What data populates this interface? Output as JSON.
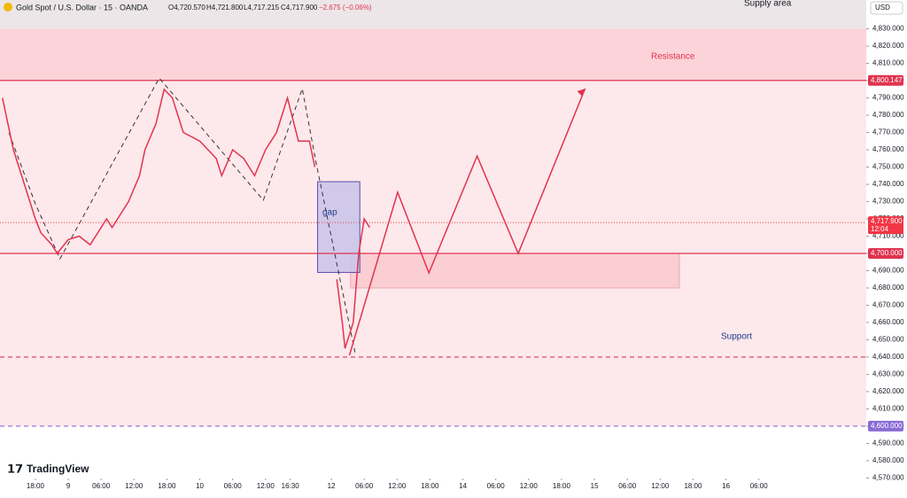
{
  "header": {
    "symbol": "Gold Spot / U.S. Dollar · 15 · OANDA",
    "open": "O4,720.570",
    "high": "H4,721.800",
    "low": "L4,717.215",
    "close": "C4,717.900",
    "change": "−2.675 (−0.06%)"
  },
  "currency": "USD",
  "brand": "TradingView",
  "annotations": {
    "supply": "Supply area",
    "resistance": "Resistance",
    "support": "Support",
    "gap": "gap"
  },
  "chart_data": {
    "type": "line",
    "xlim": [
      -6.45,
      151.6
    ],
    "ylim": [
      4569.7,
      4846.7
    ],
    "yticks": [
      {
        "value": 4570,
        "label": "4,570.000"
      },
      {
        "value": 4580,
        "label": "4,580.000"
      },
      {
        "value": 4590,
        "label": "4,590.000"
      },
      {
        "value": 4600,
        "label": "4,600.000"
      },
      {
        "value": 4610,
        "label": "4,610.000"
      },
      {
        "value": 4620,
        "label": "4,620.000"
      },
      {
        "value": 4630,
        "label": "4,630.000"
      },
      {
        "value": 4640,
        "label": "4,640.000"
      },
      {
        "value": 4650,
        "label": "4,650.000"
      },
      {
        "value": 4660,
        "label": "4,660.000"
      },
      {
        "value": 4670,
        "label": "4,670.000"
      },
      {
        "value": 4680,
        "label": "4,680.000"
      },
      {
        "value": 4690,
        "label": "4,690.000"
      },
      {
        "value": 4700,
        "label": "4,700.000"
      },
      {
        "value": 4710,
        "label": "4,710.000"
      },
      {
        "value": 4720,
        "label": "4,720.000"
      },
      {
        "value": 4730,
        "label": "4,730.000"
      },
      {
        "value": 4740,
        "label": "4,740.000"
      },
      {
        "value": 4750,
        "label": "4,750.000"
      },
      {
        "value": 4760,
        "label": "4,760.000"
      },
      {
        "value": 4770,
        "label": "4,770.000"
      },
      {
        "value": 4780,
        "label": "4,780.000"
      },
      {
        "value": 4790,
        "label": "4,790.000"
      },
      {
        "value": 4800,
        "label": "4,800.000"
      },
      {
        "value": 4810,
        "label": "4,810.000"
      },
      {
        "value": 4820,
        "label": "4,820.000"
      },
      {
        "value": 4830,
        "label": "4,830.000"
      }
    ],
    "xticks": [
      {
        "value": 0,
        "label": "18:00"
      },
      {
        "value": 6,
        "label": "9"
      },
      {
        "value": 12,
        "label": "06:00"
      },
      {
        "value": 18,
        "label": "12:00"
      },
      {
        "value": 24,
        "label": "18:00"
      },
      {
        "value": 30,
        "label": "10"
      },
      {
        "value": 36,
        "label": "06:00"
      },
      {
        "value": 42,
        "label": "12:00"
      },
      {
        "value": 46.5,
        "label": "16:30"
      },
      {
        "value": 54,
        "label": "12"
      },
      {
        "value": 60,
        "label": "06:00"
      },
      {
        "value": 66,
        "label": "12:00"
      },
      {
        "value": 72,
        "label": "18:00"
      },
      {
        "value": 78,
        "label": "14"
      },
      {
        "value": 84,
        "label": "06:00"
      },
      {
        "value": 90,
        "label": "12:00"
      },
      {
        "value": 96,
        "label": "18:00"
      },
      {
        "value": 102,
        "label": "15"
      },
      {
        "value": 108,
        "label": "06:00"
      },
      {
        "value": 114,
        "label": "12:00"
      },
      {
        "value": 120,
        "label": "18:00"
      },
      {
        "value": 126,
        "label": "16"
      },
      {
        "value": 132,
        "label": "06:00"
      }
    ],
    "zones": [
      {
        "low": 4830,
        "high": 4846.7,
        "color": "#ece6e8"
      },
      {
        "low": 4800,
        "high": 4830,
        "color": "#fcd3d8"
      },
      {
        "low": 4600,
        "high": 4800,
        "color": "#fde8eb"
      }
    ],
    "boxes": [
      {
        "x": [
          57.5,
          117.5
        ],
        "low": 4680,
        "high": 4700,
        "color": "#f9c9cf",
        "stroke": "#f0a8b2"
      },
      {
        "x": [
          51.5,
          59.2
        ],
        "low": 4689,
        "high": 4741.5,
        "color": "#c9c3ea",
        "stroke": "#5b4bb0"
      }
    ],
    "levels": [
      {
        "value": 4800.147,
        "label": "4,800.147",
        "color": "#e0344f",
        "dash": false
      },
      {
        "value": 4700,
        "label": "4,700.000",
        "color": "#e0344f",
        "dash": false
      },
      {
        "value": 4640,
        "color": "#e0344f",
        "dash": true
      },
      {
        "value": 4600,
        "label": "4,600.000",
        "color": "#8a6bd6",
        "dash": true
      }
    ],
    "last": {
      "value": 4717.9,
      "label": "4,717.900",
      "countdown": "12:04",
      "color": "#f23645"
    },
    "price": {
      "color": "#e0344f",
      "x": [
        -6,
        -4,
        -2,
        0,
        1,
        3,
        4,
        6,
        8,
        10,
        13,
        14,
        17,
        19,
        20,
        22,
        23.5,
        25,
        27,
        30,
        33,
        34,
        36,
        38,
        40,
        42,
        44,
        46,
        48,
        50,
        51,
        54,
        55,
        56,
        56.5,
        58,
        59,
        60,
        61
      ],
      "values": [
        4790,
        4760,
        4740,
        4720,
        4712,
        4705,
        4700,
        4708,
        4710,
        4705,
        4720,
        4715,
        4730,
        4745,
        4760,
        4775,
        4795,
        4790,
        4770,
        4765,
        4755,
        4745,
        4760,
        4755,
        4745,
        4760,
        4770,
        4790,
        4765,
        4765,
        4750,
        null,
        4685,
        4660,
        4645,
        4660,
        4700,
        4720,
        4715
      ]
    },
    "projection": {
      "color": "#e0344f",
      "x": [
        57.3,
        66.1,
        71.8,
        80.6,
        88.1,
        100.3
      ],
      "values": [
        4641,
        4735.4,
        4688.7,
        4756.4,
        4700,
        4795.4
      ]
    },
    "pattern": {
      "color": "#333",
      "x": [
        -4.8,
        0,
        4.5,
        22.6,
        41.6,
        48.7,
        51.1,
        58.4
      ],
      "values": [
        4769.7,
        4728.7,
        4696.9,
        4801.5,
        4730.8,
        4795.4,
        4754.4,
        4641.5
      ]
    }
  }
}
